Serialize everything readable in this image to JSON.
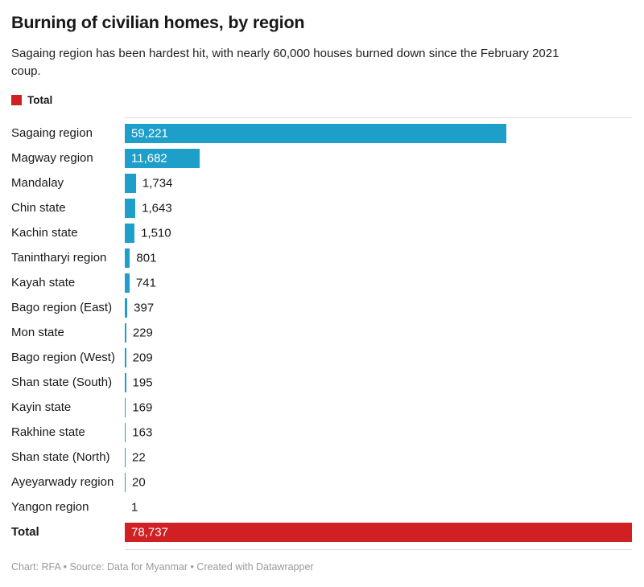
{
  "header": {
    "title": "Burning of civilian homes, by region",
    "subtitle": "Sagaing region has been hardest hit, with nearly 60,000 houses burned down since the February 2021 coup."
  },
  "legend": {
    "label": "Total",
    "swatch_color": "#d02023"
  },
  "chart_data": {
    "type": "bar",
    "orientation": "horizontal",
    "title": "Burning of civilian homes, by region",
    "xlabel": "",
    "ylabel": "",
    "xlim": [
      0,
      78737
    ],
    "grid": false,
    "legend_position": "top-left",
    "bar_color": "#1e9fc9",
    "total_color": "#d02023",
    "max_value": 78737,
    "categories": [
      "Sagaing region",
      "Magway region",
      "Mandalay",
      "Chin state",
      "Kachin state",
      "Tanintharyi region",
      "Kayah state",
      "Bago region (East)",
      "Mon state",
      "Bago region (West)",
      "Shan state (South)",
      "Kayin state",
      "Rakhine state",
      "Shan state (North)",
      "Ayeyarwady region",
      "Yangon region",
      "Total"
    ],
    "values": [
      59221,
      11682,
      1734,
      1643,
      1510,
      801,
      741,
      397,
      229,
      209,
      195,
      169,
      163,
      22,
      20,
      1,
      78737
    ],
    "rows": [
      {
        "label": "Sagaing region",
        "value": 59221,
        "display": "59,221",
        "is_total": false
      },
      {
        "label": "Magway region",
        "value": 11682,
        "display": "11,682",
        "is_total": false
      },
      {
        "label": "Mandalay",
        "value": 1734,
        "display": "1,734",
        "is_total": false
      },
      {
        "label": "Chin state",
        "value": 1643,
        "display": "1,643",
        "is_total": false
      },
      {
        "label": "Kachin state",
        "value": 1510,
        "display": "1,510",
        "is_total": false
      },
      {
        "label": "Tanintharyi region",
        "value": 801,
        "display": "801",
        "is_total": false
      },
      {
        "label": "Kayah state",
        "value": 741,
        "display": "741",
        "is_total": false
      },
      {
        "label": "Bago region (East)",
        "value": 397,
        "display": "397",
        "is_total": false
      },
      {
        "label": "Mon state",
        "value": 229,
        "display": "229",
        "is_total": false
      },
      {
        "label": "Bago region (West)",
        "value": 209,
        "display": "209",
        "is_total": false
      },
      {
        "label": "Shan state (South)",
        "value": 195,
        "display": "195",
        "is_total": false
      },
      {
        "label": "Kayin state",
        "value": 169,
        "display": "169",
        "is_total": false
      },
      {
        "label": "Rakhine state",
        "value": 163,
        "display": "163",
        "is_total": false
      },
      {
        "label": "Shan state (North)",
        "value": 22,
        "display": "22",
        "is_total": false
      },
      {
        "label": "Ayeyarwady region",
        "value": 20,
        "display": "20",
        "is_total": false
      },
      {
        "label": "Yangon region",
        "value": 1,
        "display": "1",
        "is_total": false
      },
      {
        "label": "Total",
        "value": 78737,
        "display": "78,737",
        "is_total": true
      }
    ]
  },
  "footer": {
    "credit": "Chart: RFA • Source: Data for Myanmar • Created with Datawrapper"
  }
}
